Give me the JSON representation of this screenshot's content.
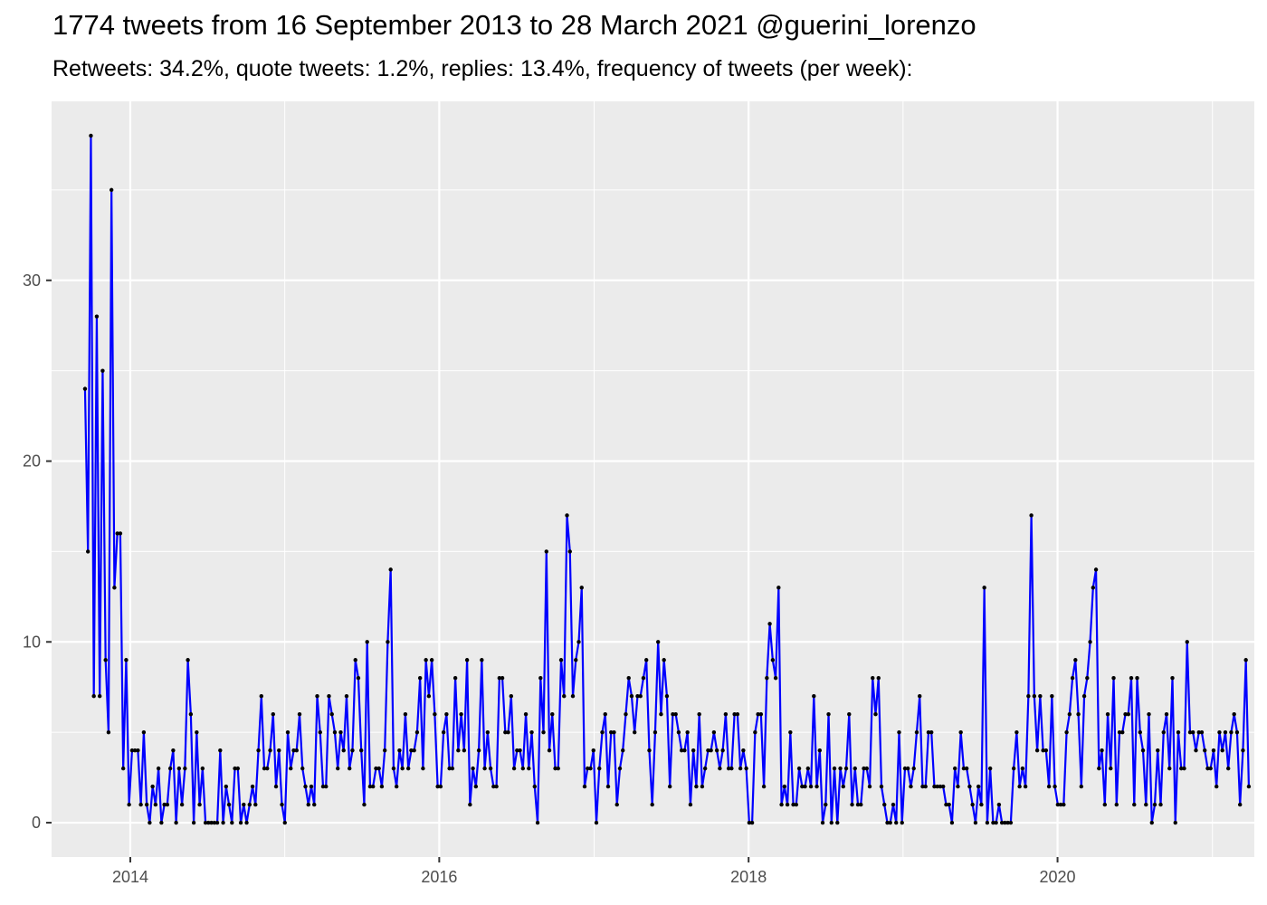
{
  "title": "1774 tweets from 16 September 2013 to 28 March 2021 @guerini_lorenzo",
  "subtitle": "Retweets: 34.2%, quote tweets: 1.2%, replies: 13.4%, frequency of tweets (per week):",
  "colors": {
    "panel_background": "#ebebeb",
    "grid": "#ffffff",
    "line": "#0000ff",
    "points": "#000000",
    "tick_text": "#4d4d4d"
  },
  "chart_data": {
    "type": "line",
    "title": "1774 tweets from 16 September 2013 to 28 March 2021 @guerini_lorenzo",
    "subtitle": "Retweets: 34.2%, quote tweets: 1.2%, replies: 13.4%, frequency of tweets (per week):",
    "xlabel": "",
    "ylabel": "",
    "x_range": [
      "2013-06-29",
      "2021-04-10"
    ],
    "ylim": [
      -1.9,
      39.9
    ],
    "y_ticks": [
      0,
      10,
      20,
      30
    ],
    "x_ticks": [
      {
        "date": "2014-01-01",
        "label": "2014"
      },
      {
        "date": "2016-01-01",
        "label": "2016"
      },
      {
        "date": "2018-01-01",
        "label": "2018"
      },
      {
        "date": "2020-01-01",
        "label": "2020"
      }
    ],
    "grid": true,
    "legend": "none",
    "series": [
      {
        "x_start": "2013-09-16",
        "x_end": "2021-03-28",
        "values": [
          24,
          15,
          38,
          7,
          28,
          7,
          25,
          9,
          5,
          35,
          13,
          16,
          16,
          3,
          9,
          1,
          4,
          4,
          4,
          1,
          5,
          1,
          0,
          2,
          1,
          3,
          0,
          1,
          1,
          3,
          4,
          0,
          3,
          1,
          3,
          9,
          6,
          0,
          5,
          1,
          3,
          0,
          0,
          0,
          0,
          0,
          4,
          0,
          2,
          1,
          0,
          3,
          3,
          0,
          1,
          0,
          1,
          2,
          1,
          4,
          7,
          3,
          3,
          4,
          6,
          2,
          4,
          1,
          0,
          5,
          3,
          4,
          4,
          6,
          3,
          2,
          1,
          2,
          1,
          7,
          5,
          2,
          2,
          7,
          6,
          5,
          3,
          5,
          4,
          7,
          3,
          4,
          9,
          8,
          4,
          1,
          10,
          2,
          2,
          3,
          3,
          2,
          4,
          10,
          14,
          3,
          2,
          4,
          3,
          6,
          3,
          4,
          4,
          5,
          8,
          3,
          9,
          7,
          9,
          6,
          2,
          2,
          5,
          6,
          3,
          3,
          8,
          4,
          6,
          4,
          9,
          1,
          3,
          2,
          4,
          9,
          3,
          5,
          3,
          2,
          2,
          8,
          8,
          5,
          5,
          7,
          3,
          4,
          4,
          3,
          6,
          3,
          5,
          2,
          0,
          8,
          5,
          15,
          4,
          6,
          3,
          3,
          9,
          7,
          17,
          15,
          7,
          9,
          10,
          13,
          2,
          3,
          3,
          4,
          0,
          3,
          5,
          6,
          2,
          5,
          5,
          1,
          3,
          4,
          6,
          8,
          7,
          5,
          7,
          7,
          8,
          9,
          4,
          1,
          5,
          10,
          6,
          9,
          7,
          2,
          6,
          6,
          5,
          4,
          4,
          5,
          1,
          4,
          2,
          6,
          2,
          3,
          4,
          4,
          5,
          4,
          3,
          4,
          6,
          3,
          3,
          6,
          6,
          3,
          4,
          3,
          0,
          0,
          5,
          6,
          6,
          2,
          8,
          11,
          9,
          8,
          13,
          1,
          2,
          1,
          5,
          1,
          1,
          3,
          2,
          2,
          3,
          2,
          7,
          2,
          4,
          0,
          1,
          6,
          0,
          3,
          0,
          3,
          2,
          3,
          6,
          1,
          3,
          1,
          1,
          3,
          3,
          2,
          8,
          6,
          8,
          2,
          1,
          0,
          0,
          1,
          0,
          5,
          0,
          3,
          3,
          2,
          3,
          5,
          7,
          2,
          2,
          5,
          5,
          2,
          2,
          2,
          2,
          1,
          1,
          0,
          3,
          2,
          5,
          3,
          3,
          2,
          1,
          0,
          2,
          1,
          13,
          0,
          3,
          0,
          0,
          1,
          0,
          0,
          0,
          0,
          3,
          5,
          2,
          3,
          2,
          7,
          17,
          7,
          4,
          7,
          4,
          4,
          2,
          7,
          2,
          1,
          1,
          1,
          5,
          6,
          8,
          9,
          6,
          2,
          7,
          8,
          10,
          13,
          14,
          3,
          4,
          1,
          6,
          3,
          8,
          1,
          5,
          5,
          6,
          6,
          8,
          1,
          8,
          5,
          4,
          1,
          6,
          0,
          1,
          4,
          1,
          5,
          6,
          3,
          8,
          0,
          5,
          3,
          3,
          10,
          5,
          5,
          4,
          5,
          5,
          4,
          3,
          3,
          4,
          2,
          5,
          4,
          5,
          3,
          5,
          6,
          5,
          1,
          4,
          9,
          2
        ]
      }
    ]
  }
}
